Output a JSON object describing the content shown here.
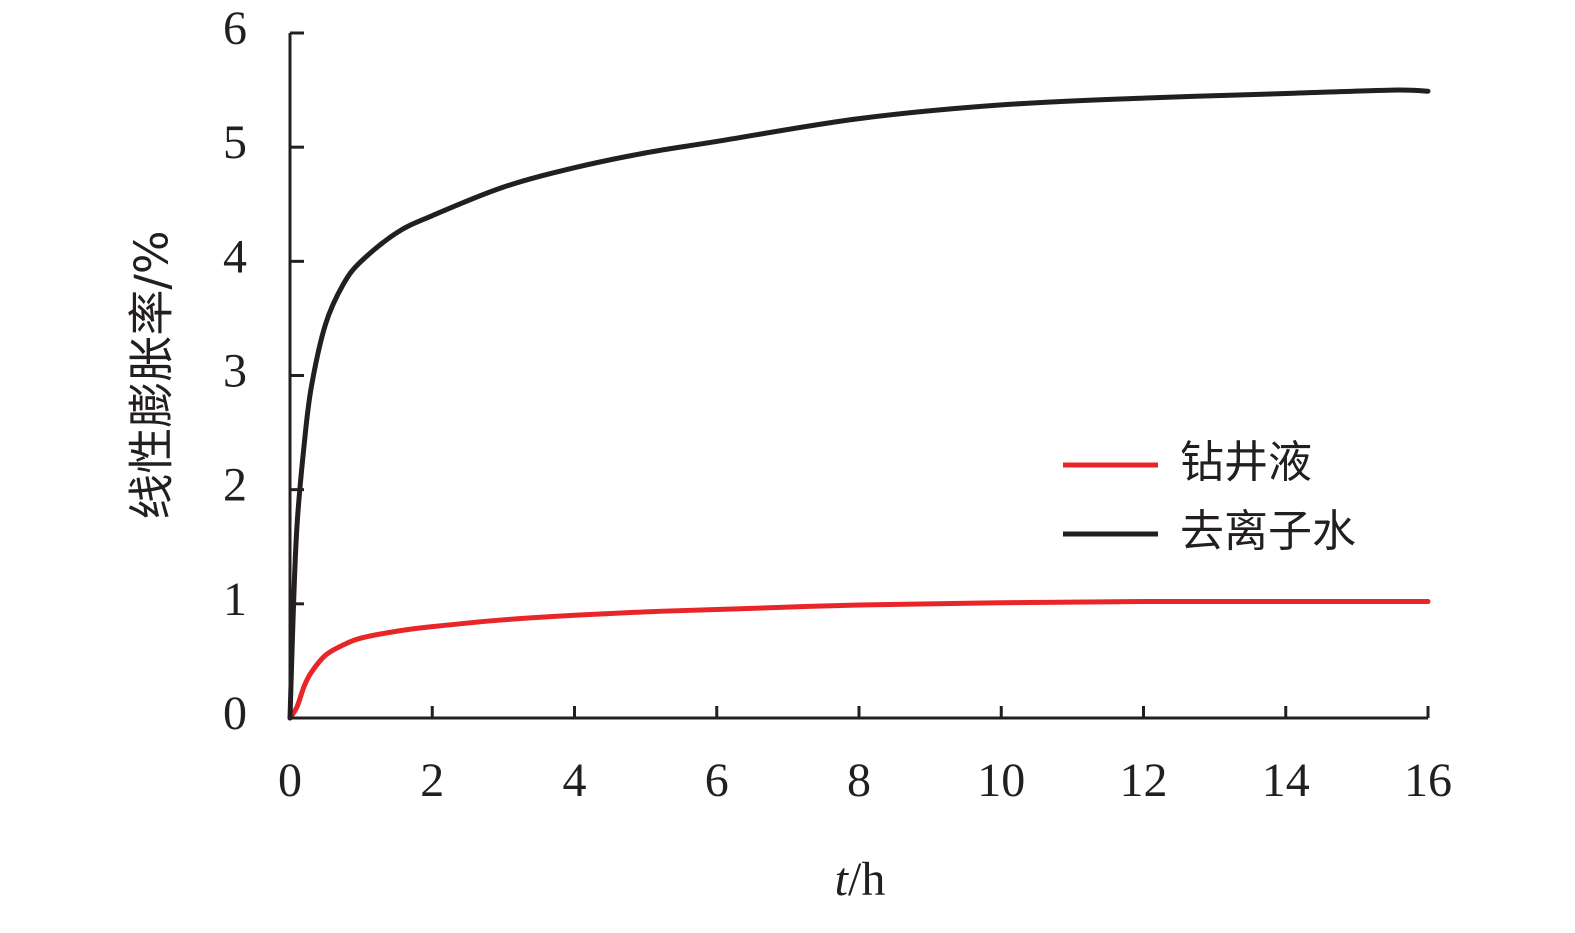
{
  "chart_data": {
    "type": "line",
    "xlabel_italic": "t",
    "xlabel_unit": "/h",
    "ylabel": "线性膨胀率/%",
    "xlim": [
      0,
      16
    ],
    "ylim": [
      0,
      6
    ],
    "x_ticks": [
      "0",
      "2",
      "4",
      "6",
      "8",
      "10",
      "12",
      "14",
      "16"
    ],
    "y_ticks": [
      "0",
      "1",
      "2",
      "3",
      "4",
      "5",
      "6"
    ],
    "grid": false,
    "legend_position": "right-center",
    "series": [
      {
        "name": "钻井液",
        "color": "#e8262a",
        "x": [
          0,
          0.1,
          0.2,
          0.3,
          0.5,
          0.75,
          1,
          1.5,
          2,
          3,
          4,
          5,
          6,
          8,
          10,
          12,
          14,
          16
        ],
        "y": [
          0,
          0.1,
          0.28,
          0.4,
          0.55,
          0.64,
          0.7,
          0.76,
          0.8,
          0.86,
          0.9,
          0.93,
          0.95,
          0.99,
          1.01,
          1.02,
          1.02,
          1.02
        ]
      },
      {
        "name": "去离子水",
        "color": "#231f20",
        "x": [
          0,
          0.05,
          0.1,
          0.2,
          0.3,
          0.5,
          0.75,
          1,
          1.5,
          2,
          3,
          4,
          5,
          6,
          8,
          10,
          12,
          14,
          15.5,
          16
        ],
        "y": [
          0,
          1.0,
          1.7,
          2.4,
          2.9,
          3.45,
          3.8,
          4.0,
          4.25,
          4.4,
          4.65,
          4.82,
          4.95,
          5.05,
          5.25,
          5.37,
          5.43,
          5.47,
          5.5,
          5.49
        ]
      }
    ]
  }
}
